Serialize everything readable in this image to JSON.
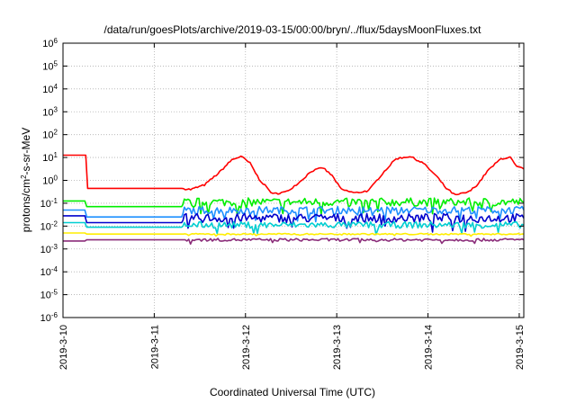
{
  "chart_data": {
    "type": "line",
    "title": "/data/run/goesPlots/archive/2019-03-15/00:00/bryn/../flux/5daysMoonFluxes.txt",
    "xlabel": "Coordinated Universal Time (UTC)",
    "ylabel_main": "protons/cm",
    "ylabel_sup": "2",
    "ylabel_rest": "-s-sr-MeV",
    "x_range_days": [
      0,
      5.05
    ],
    "y_scale": "log",
    "y_exp_range": [
      -6,
      6
    ],
    "grid": true,
    "x_ticks": [
      {
        "day": 0,
        "label": "2019-3-10"
      },
      {
        "day": 1,
        "label": "2019-3-11"
      },
      {
        "day": 2,
        "label": "2019-3-12"
      },
      {
        "day": 3,
        "label": "2019-3-13"
      },
      {
        "day": 4,
        "label": "2019-3-14"
      },
      {
        "day": 5,
        "label": "2019-3-15"
      }
    ],
    "y_ticks": [
      {
        "exp": 6,
        "base": "10",
        "sup": "6"
      },
      {
        "exp": 5,
        "base": "10",
        "sup": "5"
      },
      {
        "exp": 4,
        "base": "10",
        "sup": "4"
      },
      {
        "exp": 3,
        "base": "10",
        "sup": "3"
      },
      {
        "exp": 2,
        "base": "10",
        "sup": "2"
      },
      {
        "exp": 1,
        "base": "10",
        "sup": "1"
      },
      {
        "exp": 0,
        "base": "10",
        "sup": "0"
      },
      {
        "exp": -1,
        "base": "10",
        "sup": "-1"
      },
      {
        "exp": -2,
        "base": "10",
        "sup": "-2"
      },
      {
        "exp": -3,
        "base": "10",
        "sup": "-3"
      },
      {
        "exp": -4,
        "base": "10",
        "sup": "-4"
      },
      {
        "exp": -5,
        "base": "10",
        "sup": "-5"
      },
      {
        "exp": -6,
        "base": "10",
        "sup": "-6"
      }
    ],
    "series": [
      {
        "color": "#ff0000",
        "noise": 0.04,
        "points": [
          [
            0,
            1.1
          ],
          [
            0.25,
            1.1
          ],
          [
            0.27,
            -0.35
          ],
          [
            1.3,
            -0.35
          ],
          [
            1.4,
            -0.4
          ],
          [
            1.55,
            -0.2
          ],
          [
            1.7,
            0.3
          ],
          [
            1.85,
            0.9
          ],
          [
            1.95,
            1.05
          ],
          [
            2.05,
            0.75
          ],
          [
            2.15,
            0.05
          ],
          [
            2.3,
            -0.6
          ],
          [
            2.45,
            -0.5
          ],
          [
            2.6,
            -0.05
          ],
          [
            2.72,
            0.4
          ],
          [
            2.85,
            0.55
          ],
          [
            2.95,
            0.2
          ],
          [
            3.05,
            -0.4
          ],
          [
            3.2,
            -0.55
          ],
          [
            3.35,
            -0.45
          ],
          [
            3.5,
            0.3
          ],
          [
            3.65,
            0.95
          ],
          [
            3.8,
            1.05
          ],
          [
            3.95,
            0.75
          ],
          [
            4.1,
            0.15
          ],
          [
            4.2,
            -0.35
          ],
          [
            4.3,
            -0.65
          ],
          [
            4.45,
            -0.5
          ],
          [
            4.55,
            -0.15
          ],
          [
            4.65,
            0.4
          ],
          [
            4.8,
            0.95
          ],
          [
            4.9,
            1.0
          ],
          [
            4.97,
            0.6
          ],
          [
            5.05,
            0.5
          ]
        ]
      },
      {
        "color": "#00ee00",
        "noise": 0.18,
        "points": [
          [
            0,
            -0.9
          ],
          [
            0.24,
            -0.9
          ],
          [
            0.26,
            -1.15
          ],
          [
            1.3,
            -1.15
          ],
          [
            1.33,
            -0.95
          ],
          [
            5.05,
            -0.95
          ]
        ]
      },
      {
        "color": "#1e90ff",
        "noise": 0.16,
        "points": [
          [
            0,
            -1.3
          ],
          [
            0.24,
            -1.3
          ],
          [
            0.26,
            -1.6
          ],
          [
            1.3,
            -1.6
          ],
          [
            1.33,
            -1.3
          ],
          [
            5.05,
            -1.3
          ]
        ]
      },
      {
        "color": "#0000cd",
        "noise": 0.2,
        "points": [
          [
            0,
            -1.55
          ],
          [
            0.24,
            -1.55
          ],
          [
            0.26,
            -1.85
          ],
          [
            1.3,
            -1.85
          ],
          [
            1.33,
            -1.65
          ],
          [
            5.05,
            -1.65
          ]
        ]
      },
      {
        "color": "#00ced1",
        "noise": 0.14,
        "points": [
          [
            0,
            -1.85
          ],
          [
            0.24,
            -1.85
          ],
          [
            0.26,
            -2.05
          ],
          [
            1.3,
            -2.05
          ],
          [
            1.33,
            -1.95
          ],
          [
            5.05,
            -1.95
          ]
        ]
      },
      {
        "color": "#ffee00",
        "noise": 0.03,
        "points": [
          [
            0,
            -2.3
          ],
          [
            0.24,
            -2.3
          ],
          [
            0.26,
            -2.35
          ],
          [
            5.05,
            -2.35
          ]
        ]
      },
      {
        "color": "#8b2d7a",
        "noise": 0.06,
        "points": [
          [
            0,
            -2.65
          ],
          [
            0.24,
            -2.65
          ],
          [
            0.26,
            -2.6
          ],
          [
            5.05,
            -2.6
          ]
        ]
      }
    ]
  }
}
